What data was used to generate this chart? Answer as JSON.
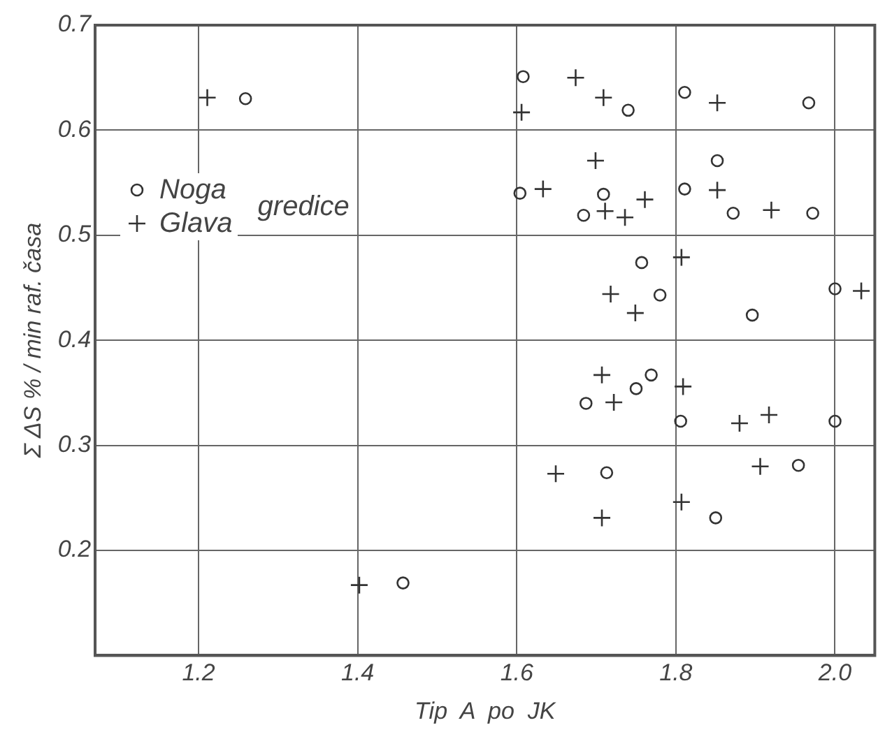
{
  "chart_data": {
    "type": "scatter",
    "xlabel": "Tip  A  po  JK",
    "ylabel": "Σ ΔS % / min raf. časa",
    "xlim": [
      1.07,
      2.05
    ],
    "xticks": [
      1.2,
      1.4,
      1.6,
      1.8,
      {
        "value": 2.0,
        "label": "2.0"
      }
    ],
    "ylim": [
      0.1,
      0.7
    ],
    "yticks": [
      {
        "value": 0.1,
        "label": null
      },
      0.2,
      0.3,
      0.4,
      0.5,
      0.6,
      0.7
    ],
    "grid": true,
    "legend": "left",
    "annotations": [
      "gredice"
    ],
    "series": [
      {
        "name": "Noga",
        "color": "#333333",
        "marker": "circle",
        "x": [
          1.259,
          1.608,
          1.74,
          1.811,
          1.967,
          1.852,
          1.604,
          1.709,
          1.684,
          1.811,
          1.872,
          1.972,
          1.757,
          1.78,
          1.896,
          2.0,
          1.769,
          1.75,
          1.687,
          1.806,
          2.0,
          1.713,
          1.954,
          1.85,
          1.457
        ],
        "values": [
          0.63,
          0.651,
          0.619,
          0.636,
          0.626,
          0.571,
          0.54,
          0.539,
          0.519,
          0.544,
          0.521,
          0.521,
          0.474,
          0.443,
          0.424,
          0.449,
          0.367,
          0.354,
          0.34,
          0.323,
          0.323,
          0.274,
          0.281,
          0.231,
          0.169
        ]
      },
      {
        "name": "Glava",
        "color": "#333333",
        "marker": "cross",
        "x": [
          1.211,
          1.606,
          1.674,
          1.709,
          1.852,
          1.699,
          1.633,
          1.711,
          1.736,
          1.761,
          1.852,
          1.92,
          1.807,
          1.718,
          1.749,
          2.033,
          1.707,
          1.722,
          1.809,
          1.88,
          1.917,
          1.649,
          1.906,
          1.707,
          1.807,
          1.402
        ],
        "values": [
          0.631,
          0.617,
          0.65,
          0.631,
          0.626,
          0.571,
          0.544,
          0.523,
          0.517,
          0.534,
          0.543,
          0.524,
          0.479,
          0.444,
          0.426,
          0.447,
          0.367,
          0.341,
          0.356,
          0.321,
          0.329,
          0.273,
          0.28,
          0.231,
          0.246,
          0.167
        ]
      }
    ]
  }
}
